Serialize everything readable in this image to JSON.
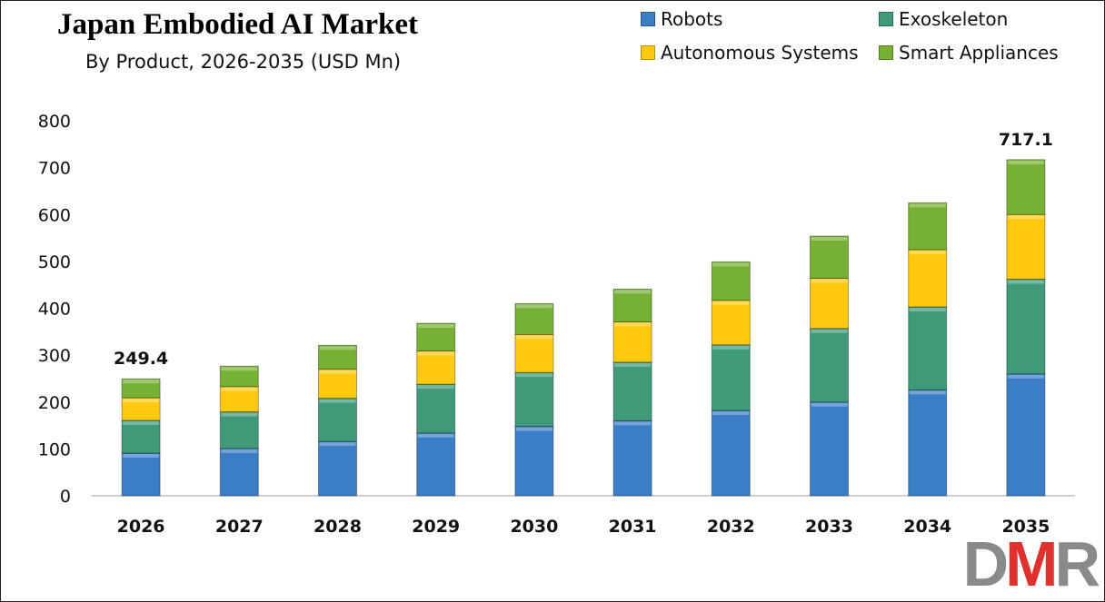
{
  "chart_data": {
    "type": "bar",
    "stacked": true,
    "title": "Japan Embodied AI Market",
    "subtitle": "By Product, 2026-2035 (USD Mn)",
    "categories": [
      "2026",
      "2027",
      "2028",
      "2029",
      "2030",
      "2031",
      "2032",
      "2033",
      "2034",
      "2035"
    ],
    "series": [
      {
        "name": "Robots",
        "color": "#3a7ec6",
        "values": [
          91,
          101,
          116,
          134,
          148,
          160,
          182,
          200,
          226,
          260
        ]
      },
      {
        "name": "Exoskeleton",
        "color": "#3f9a78",
        "values": [
          70,
          78,
          92,
          104,
          115,
          125,
          140,
          157,
          177,
          202
        ]
      },
      {
        "name": "Autonomous Systems",
        "color": "#ffc910",
        "values": [
          48,
          54,
          62,
          71,
          81,
          86,
          95,
          107,
          122,
          138
        ]
      },
      {
        "name": "Smart Appliances",
        "color": "#76b134",
        "values": [
          40.4,
          43.5,
          51,
          59,
          66,
          70,
          82,
          90,
          100,
          117.1
        ]
      }
    ],
    "data_labels": [
      {
        "category": "2026",
        "text": "249.4"
      },
      {
        "category": "2035",
        "text": "717.1"
      }
    ],
    "ylim": [
      0,
      800
    ],
    "yticks": [
      "0",
      "100",
      "200",
      "300",
      "400",
      "500",
      "600",
      "700",
      "800"
    ],
    "grid": false,
    "legend": "top-right",
    "xlabel": "",
    "ylabel": ""
  },
  "logo": {
    "text": "DMR",
    "colors": [
      "#8a8a8a",
      "#e0312e",
      "#8a8a8a"
    ]
  }
}
